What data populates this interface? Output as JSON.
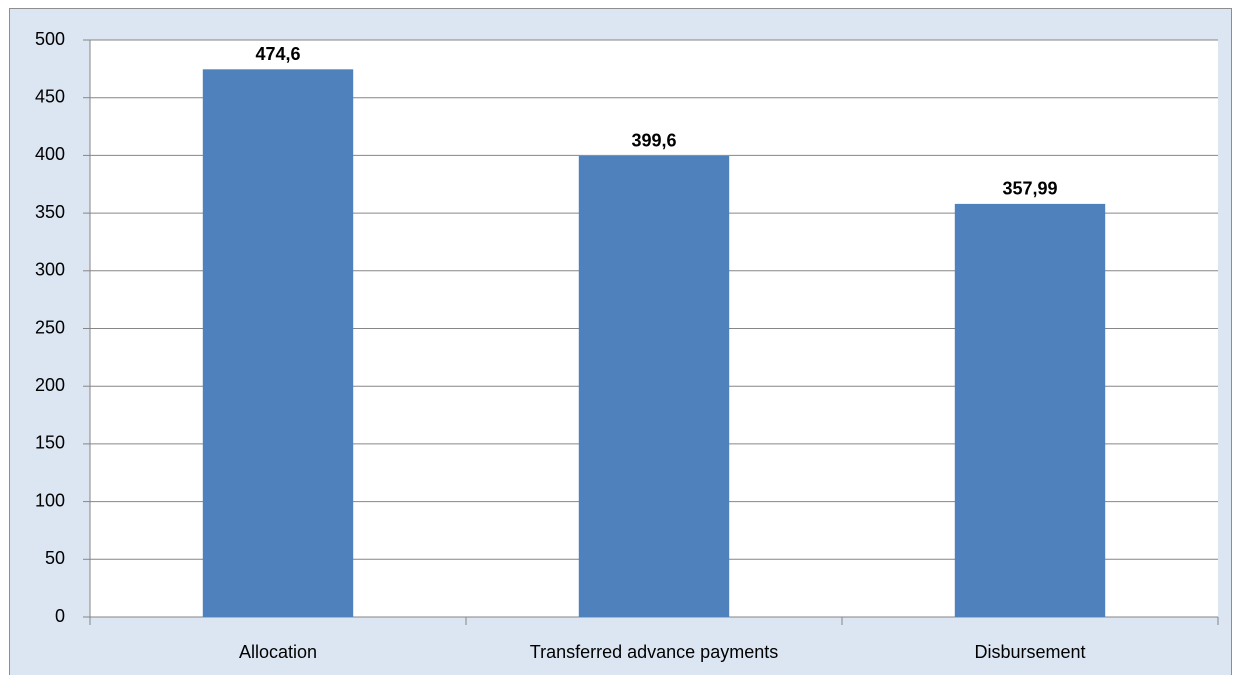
{
  "chart_data": {
    "type": "bar",
    "categories": [
      "Allocation",
      "Transferred advance payments",
      "Disbursement"
    ],
    "values": [
      474.6,
      399.6,
      357.99
    ],
    "value_labels": [
      "474,6",
      "399,6",
      "357,99"
    ],
    "color": "#4f81bd",
    "ylim": [
      0,
      500
    ],
    "yticks": [
      0,
      50,
      100,
      150,
      200,
      250,
      300,
      350,
      400,
      450,
      500
    ],
    "grid": true
  }
}
